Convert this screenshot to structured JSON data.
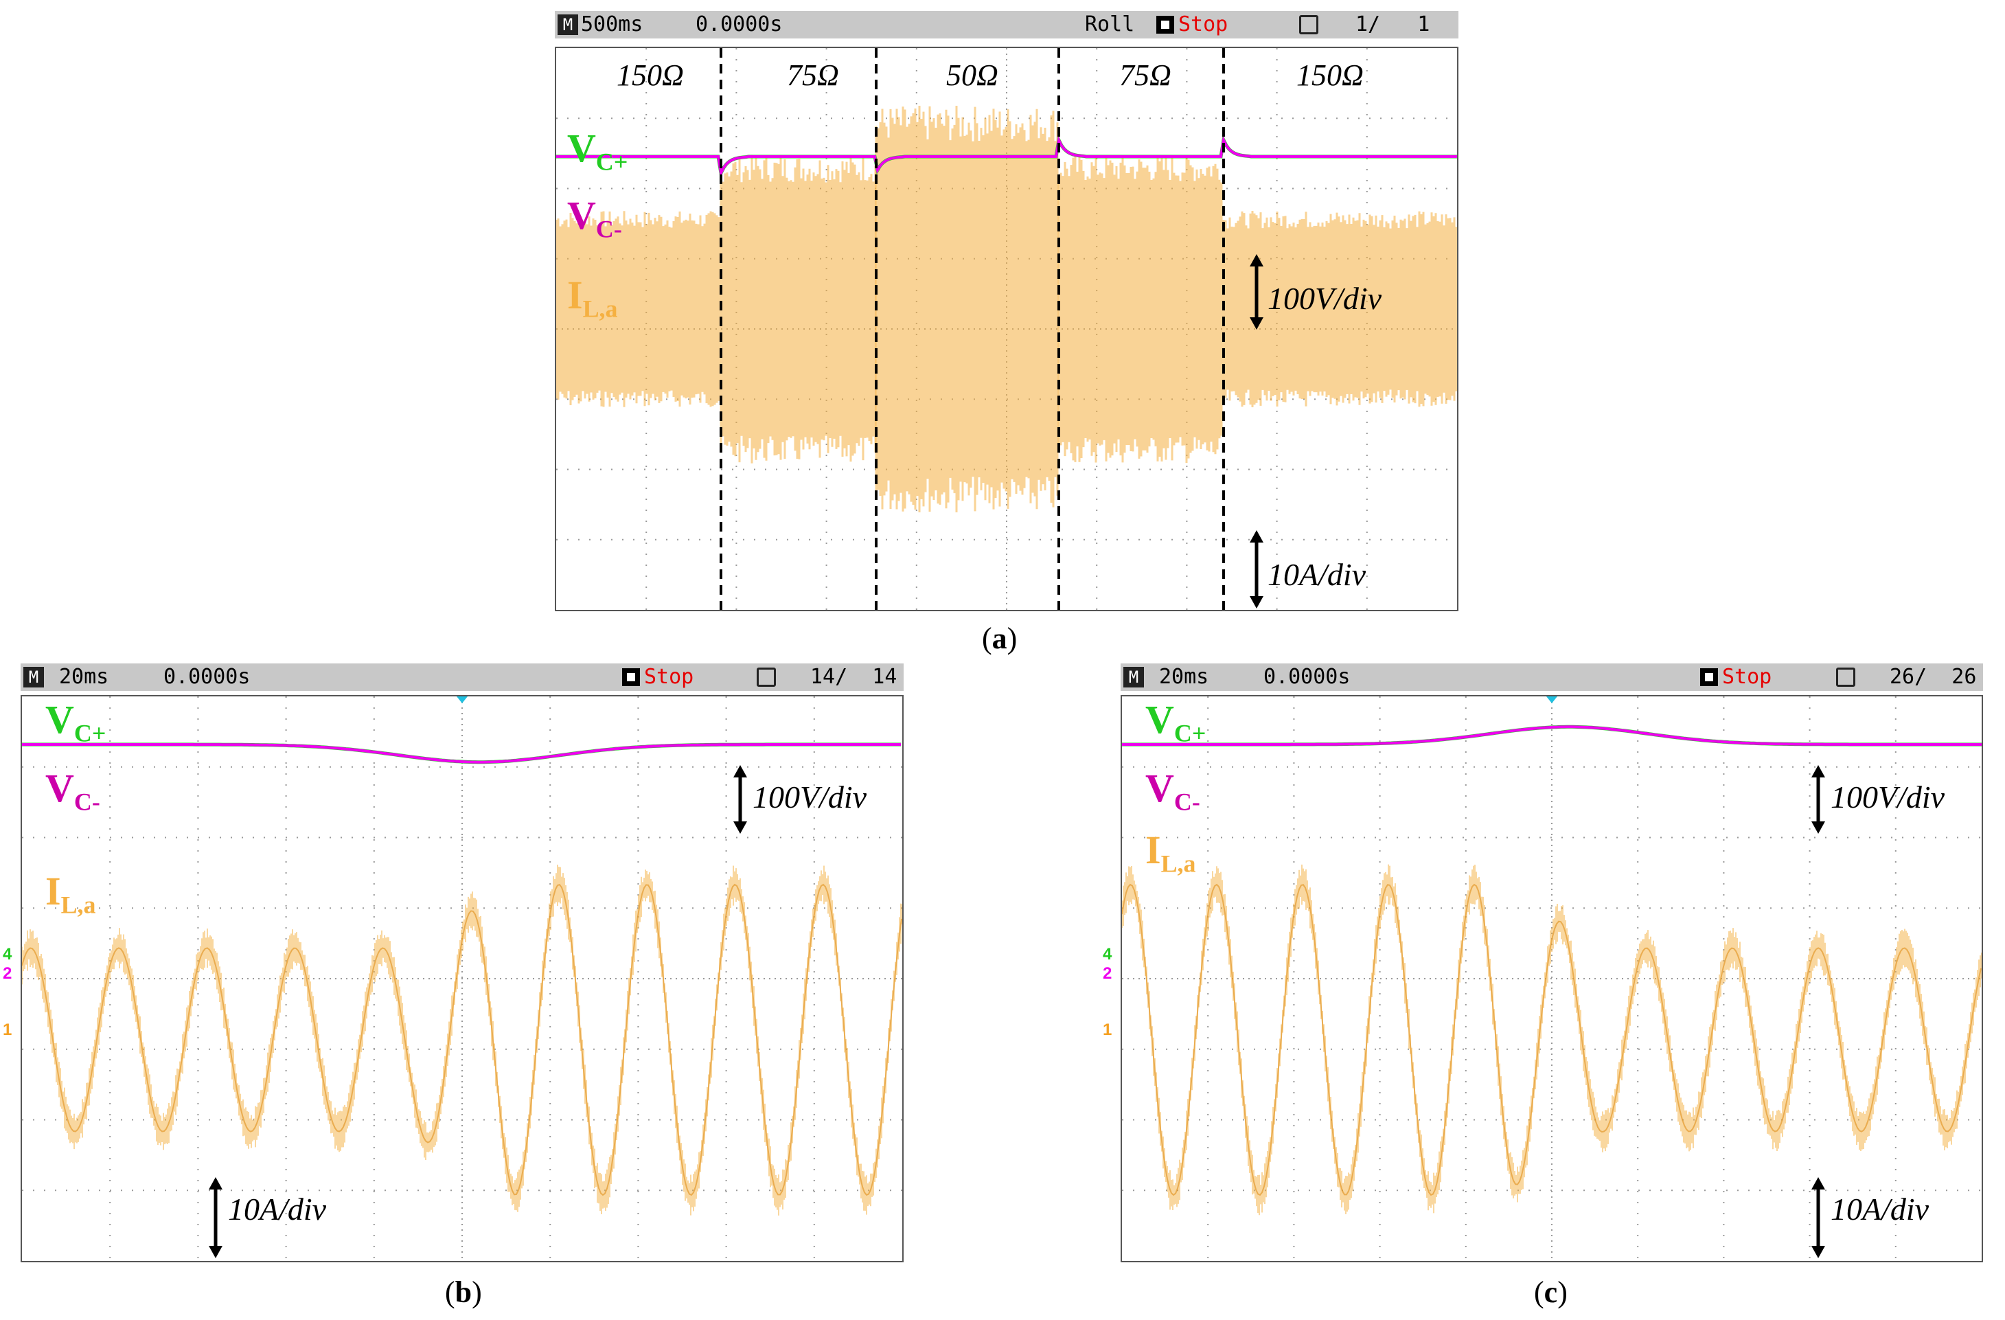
{
  "chart_data": [
    {
      "id": "a",
      "type": "line",
      "caption_letter": "a",
      "header": {
        "timebase": "500ms",
        "time": "0.0000s",
        "mode": "Roll",
        "status": "Stop",
        "count": "1/   1"
      },
      "segments": [
        "150Ω",
        "75Ω",
        "50Ω",
        "75Ω",
        "150Ω"
      ],
      "series": [
        {
          "name": "V",
          "sub": "C+",
          "color": "#22cc22"
        },
        {
          "name": "V",
          "sub": "C-",
          "color": "#ee00ee"
        },
        {
          "name": "I",
          "sub": "L,a",
          "color": "#f5b041"
        }
      ],
      "current_envelope_div": [
        1.4,
        2.2,
        2.9,
        2.2,
        1.4
      ],
      "scales": [
        "100V/div",
        "10A/div"
      ],
      "grid": true
    },
    {
      "id": "b",
      "type": "line",
      "caption_letter": "b",
      "header": {
        "timebase": "20ms",
        "time": "0.0000s",
        "status": "Stop",
        "count": "14/  14"
      },
      "series": [
        {
          "name": "V",
          "sub": "C+",
          "color": "#22cc22"
        },
        {
          "name": "V",
          "sub": "C-",
          "color": "#ee00ee"
        },
        {
          "name": "I",
          "sub": "L,a",
          "color": "#f5b041"
        }
      ],
      "current_amplitude_div": {
        "before": 1.3,
        "after": 2.2
      },
      "voltage_dip_div": 0.25,
      "cycles": 10,
      "channel_markers": [
        "4",
        "2",
        "1"
      ],
      "scales": [
        "100V/div",
        "10A/div"
      ],
      "grid": true
    },
    {
      "id": "c",
      "type": "line",
      "caption_letter": "c",
      "header": {
        "timebase": "20ms",
        "time": "0.0000s",
        "status": "Stop",
        "count": "26/  26"
      },
      "series": [
        {
          "name": "V",
          "sub": "C+",
          "color": "#22cc22"
        },
        {
          "name": "V",
          "sub": "C-",
          "color": "#ee00ee"
        },
        {
          "name": "I",
          "sub": "L,a",
          "color": "#f5b041"
        }
      ],
      "current_amplitude_div": {
        "before": 2.2,
        "after": 1.3
      },
      "voltage_rise_div": 0.25,
      "cycles": 10,
      "channel_markers": [
        "4",
        "2",
        "1"
      ],
      "scales": [
        "100V/div",
        "10A/div"
      ],
      "grid": true
    }
  ]
}
